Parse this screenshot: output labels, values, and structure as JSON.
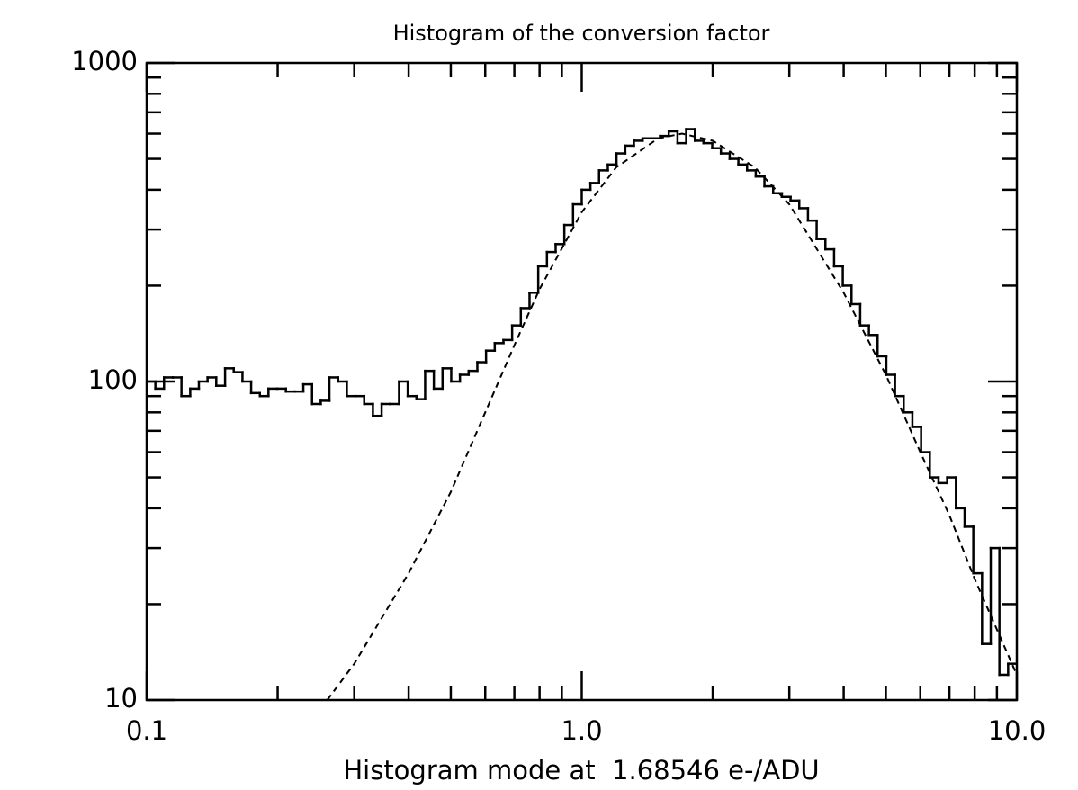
{
  "chart_data": {
    "type": "histogram",
    "title": "Histogram of the conversion factor",
    "x_label": "Histogram mode at  1.68546 e-/ADU",
    "xscale": "log",
    "yscale": "log",
    "xlim": [
      0.1,
      10
    ],
    "ylim": [
      10,
      1000
    ],
    "xticks": [
      0.1,
      {
        "value": 1,
        "label": "1.0"
      },
      {
        "value": 10,
        "label": "10.0"
      }
    ],
    "yticks": [
      10,
      100,
      1000
    ],
    "xminor_ticks": [
      0.2,
      0.3,
      0.4,
      0.5,
      0.6,
      0.7,
      0.8,
      0.9,
      2,
      3,
      4,
      5,
      6,
      7,
      8,
      9
    ],
    "yminor_ticks": [
      20,
      30,
      40,
      50,
      60,
      70,
      80,
      90,
      200,
      300,
      400,
      500,
      600,
      700,
      800,
      900
    ],
    "color": "#000000",
    "bins": [
      0.1,
      0.1047,
      0.1096,
      0.1148,
      0.1202,
      0.1259,
      0.1318,
      0.138,
      0.1445,
      0.1514,
      0.1585,
      0.166,
      0.1738,
      0.182,
      0.1905,
      0.1995,
      0.2089,
      0.2188,
      0.2291,
      0.2399,
      0.2512,
      0.263,
      0.2754,
      0.2884,
      0.302,
      0.3162,
      0.3311,
      0.3467,
      0.3631,
      0.3802,
      0.3981,
      0.4169,
      0.4365,
      0.4571,
      0.4786,
      0.5012,
      0.5248,
      0.5495,
      0.5754,
      0.6026,
      0.631,
      0.6607,
      0.6918,
      0.7244,
      0.7586,
      0.7943,
      0.8318,
      0.871,
      0.912,
      0.955,
      1.0,
      1.047,
      1.096,
      1.148,
      1.202,
      1.259,
      1.318,
      1.38,
      1.445,
      1.514,
      1.585,
      1.66,
      1.738,
      1.82,
      1.905,
      1.995,
      2.089,
      2.188,
      2.291,
      2.399,
      2.512,
      2.63,
      2.754,
      2.884,
      3.02,
      3.162,
      3.311,
      3.467,
      3.631,
      3.802,
      3.981,
      4.169,
      4.365,
      4.571,
      4.786,
      5.012,
      5.248,
      5.495,
      5.754,
      6.026,
      6.31,
      6.607,
      6.918,
      7.244,
      7.586,
      7.943,
      8.318,
      8.71,
      9.12,
      9.55,
      10.0
    ],
    "values": [
      100,
      95,
      103,
      103,
      90,
      95,
      100,
      103,
      97,
      110,
      107,
      100,
      92,
      90,
      95,
      95,
      93,
      93,
      98,
      85,
      87,
      103,
      100,
      90,
      90,
      85,
      78,
      85,
      85,
      100,
      90,
      88,
      108,
      95,
      110,
      100,
      105,
      108,
      115,
      125,
      132,
      135,
      150,
      170,
      190,
      230,
      255,
      270,
      310,
      360,
      400,
      420,
      460,
      480,
      520,
      550,
      570,
      580,
      580,
      590,
      610,
      560,
      620,
      570,
      560,
      540,
      520,
      500,
      480,
      460,
      440,
      410,
      390,
      380,
      370,
      350,
      320,
      280,
      260,
      230,
      200,
      175,
      150,
      140,
      120,
      105,
      90,
      80,
      72,
      60,
      50,
      48,
      50,
      40,
      35,
      25,
      15,
      30,
      12,
      13
    ],
    "fit": {
      "x": [
        0.26,
        0.3,
        0.4,
        0.5,
        0.6,
        0.7,
        0.8,
        1.0,
        1.2,
        1.5,
        1.7,
        2.0,
        2.5,
        3.0,
        4.0,
        5.0,
        6.0,
        7.0,
        8.0,
        10.0
      ],
      "values": [
        10,
        13,
        25,
        45,
        80,
        130,
        195,
        340,
        470,
        580,
        600,
        570,
        470,
        360,
        190,
        105,
        60,
        38,
        24,
        12
      ],
      "dash": true,
      "color": "#000000"
    }
  }
}
